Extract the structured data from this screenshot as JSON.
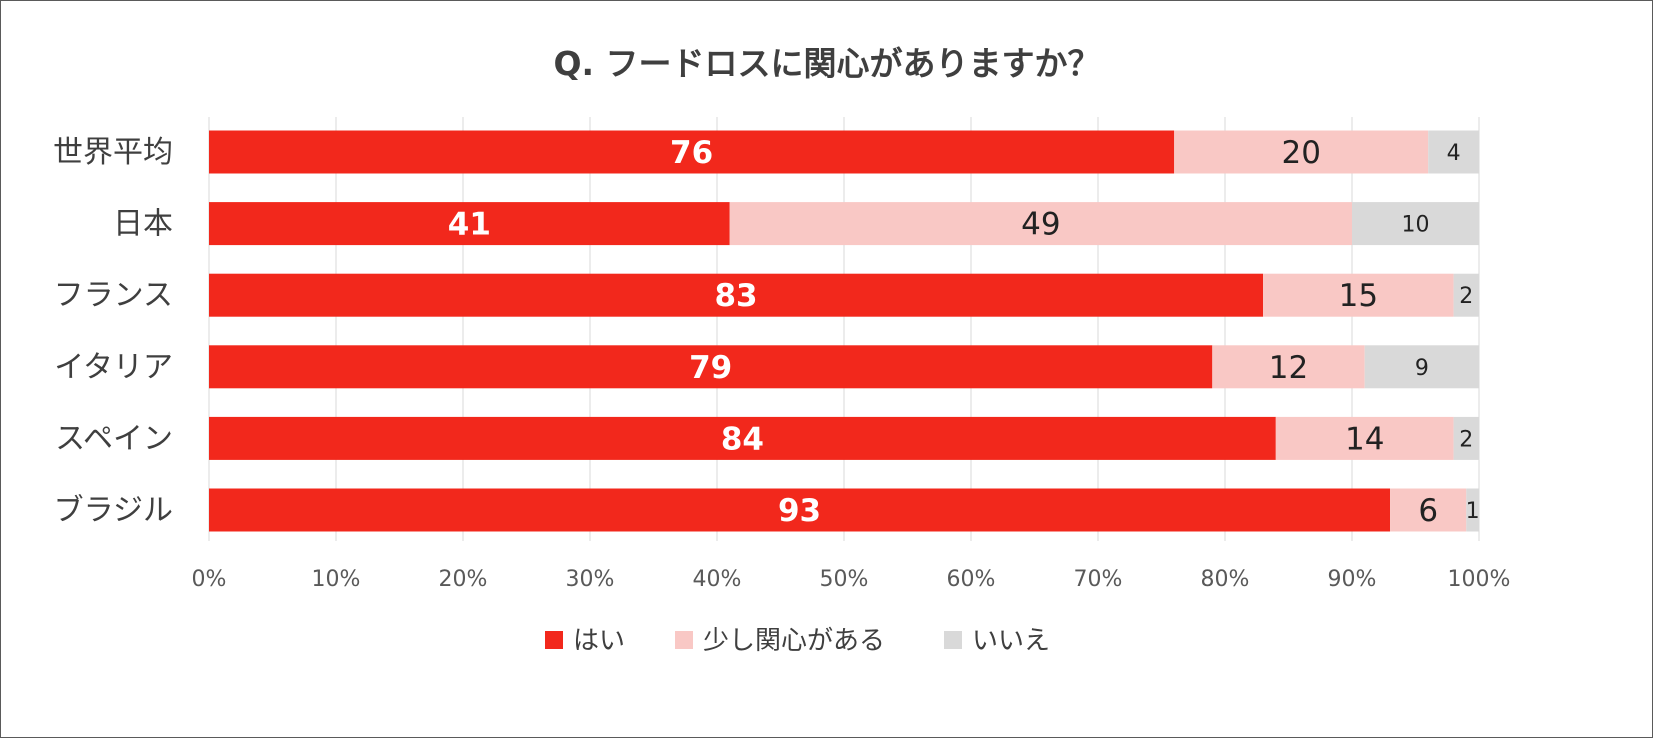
{
  "chart_data": {
    "type": "bar",
    "orientation": "horizontal",
    "stacked": "percent",
    "title": "Q. フードロスに関心がありますか？",
    "categories": [
      "世界平均",
      "日本",
      "フランス",
      "イタリア",
      "スペイン",
      "ブラジル"
    ],
    "series": [
      {
        "name": "はい",
        "color": "#f2281c",
        "values": [
          76,
          41,
          83,
          79,
          84,
          93
        ]
      },
      {
        "name": "少し関心がある",
        "color": "#f9c8c5",
        "values": [
          20,
          49,
          15,
          12,
          14,
          6
        ]
      },
      {
        "name": "いいえ",
        "color": "#d9d9d9",
        "values": [
          4,
          10,
          2,
          9,
          2,
          1
        ]
      }
    ],
    "xlim": [
      0,
      100
    ],
    "xticks": [
      "0%",
      "10%",
      "20%",
      "30%",
      "40%",
      "50%",
      "60%",
      "70%",
      "80%",
      "90%",
      "100%"
    ],
    "grid": true,
    "legend": "bottom"
  }
}
